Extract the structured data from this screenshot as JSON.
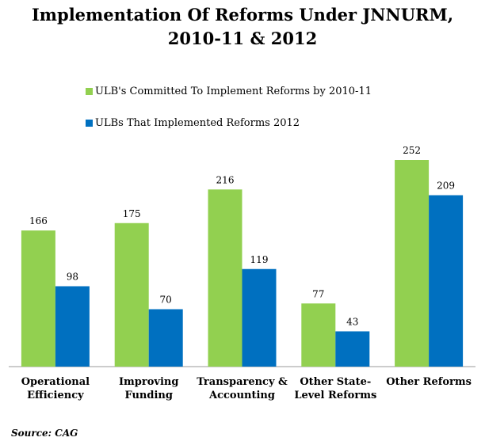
{
  "title": {
    "line1": "Implementation Of Reforms Under JNNURM,",
    "line2": "2010-11 & 2012"
  },
  "source": "Source: CAG",
  "chart_data": {
    "type": "bar",
    "categories": [
      [
        "Operational",
        "Efficiency"
      ],
      [
        "Improving",
        "Funding"
      ],
      [
        "Transparency &",
        "Accounting"
      ],
      [
        "Other State-",
        "Level Reforms"
      ],
      [
        "Other Reforms"
      ]
    ],
    "series": [
      {
        "name": "ULB's Committed To Implement Reforms by 2010-11",
        "values": [
          166,
          175,
          216,
          77,
          252
        ],
        "color": "#92D050"
      },
      {
        "name": "ULBs That Implemented Reforms 2012",
        "values": [
          98,
          70,
          119,
          43,
          209
        ],
        "color": "#0070C0"
      }
    ],
    "ylim": [
      0,
      260
    ],
    "data_labels": true,
    "grid": false,
    "legend_position": "top-left"
  }
}
